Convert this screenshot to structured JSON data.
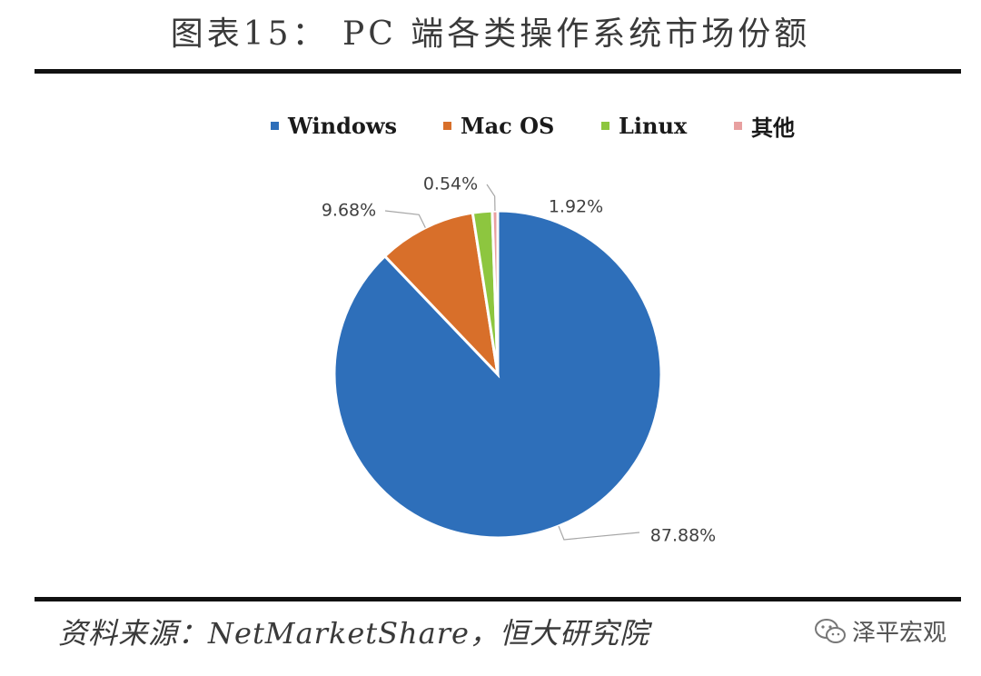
{
  "page": {
    "title": "图表15： PC 端各类操作系统市场份额",
    "source": "资料来源：NetMarketShare，恒大研究院",
    "watermark": "泽平宏观"
  },
  "chart_data": {
    "type": "pie",
    "title": "",
    "legend_position": "top",
    "slices": [
      {
        "name": "Windows",
        "value": 87.88,
        "label": "87.88%",
        "color": "#2e6fba"
      },
      {
        "name": "Mac OS",
        "value": 9.68,
        "label": "9.68%",
        "color": "#d86f2a"
      },
      {
        "name": "Linux",
        "value": 1.92,
        "label": "1.92%",
        "color": "#8dc63f"
      },
      {
        "name": "其他",
        "value": 0.54,
        "label": "0.54%",
        "color": "#e8a0a0"
      }
    ]
  }
}
